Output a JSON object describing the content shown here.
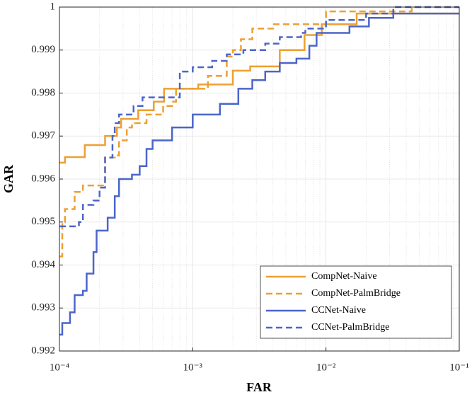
{
  "chart_data": {
    "type": "line",
    "x_label": "FAR",
    "y_label": "GAR",
    "xscale": "log",
    "xlim": [
      0.0001,
      0.1
    ],
    "xticks": [
      {
        "value": 0.0001,
        "label": "10⁻⁴"
      },
      {
        "value": 0.001,
        "label": "10⁻³"
      },
      {
        "value": 0.01,
        "label": "10⁻²"
      },
      {
        "value": 0.1,
        "label": "10⁻¹"
      }
    ],
    "ylim": [
      0.992,
      1
    ],
    "yticks": [
      0.992,
      0.993,
      0.994,
      0.995,
      0.996,
      0.997,
      0.998,
      0.999,
      1
    ],
    "grid": true,
    "minor_grid": true,
    "legend": "lower right",
    "series": [
      {
        "name": "CompNet-Naive",
        "color": "#eda031",
        "dash": "solid",
        "x": [
          0.0001,
          0.00011,
          0.00011,
          0.000155,
          0.000155,
          0.00022,
          0.00022,
          0.00027,
          0.00027,
          0.00029,
          0.00029,
          0.00039,
          0.00039,
          0.00051,
          0.00051,
          0.00061,
          0.00061,
          0.0011,
          0.0011,
          0.002,
          0.002,
          0.0027,
          0.0027,
          0.0045,
          0.0045,
          0.0069,
          0.0069,
          0.0093,
          0.0093,
          0.017,
          0.017,
          0.1
        ],
        "values": [
          0.99638,
          0.99638,
          0.99651,
          0.99651,
          0.99679,
          0.99679,
          0.997,
          0.997,
          0.9972,
          0.9972,
          0.9974,
          0.9974,
          0.9976,
          0.9976,
          0.9978,
          0.9978,
          0.9981,
          0.9981,
          0.9982,
          0.9982,
          0.99852,
          0.99852,
          0.99862,
          0.99862,
          0.999,
          0.999,
          0.99935,
          0.99935,
          0.9996,
          0.9996,
          0.99985,
          0.99985
        ]
      },
      {
        "name": "CompNet-PalmBridge",
        "color": "#eda031",
        "dash": "dashed",
        "x": [
          0.0001,
          0.000105,
          0.000105,
          0.00011,
          0.00011,
          0.00013,
          0.00013,
          0.00015,
          0.00015,
          0.00022,
          0.00022,
          0.00026,
          0.00026,
          0.00028,
          0.00028,
          0.00032,
          0.00032,
          0.00035,
          0.00035,
          0.00045,
          0.00045,
          0.0006,
          0.0006,
          0.0007,
          0.0007,
          0.00075,
          0.00075,
          0.0013,
          0.0013,
          0.0018,
          0.0018,
          0.002,
          0.002,
          0.0023,
          0.0023,
          0.0028,
          0.0028,
          0.004,
          0.004,
          0.01,
          0.01,
          0.044,
          0.044,
          0.1
        ],
        "values": [
          0.9942,
          0.9942,
          0.995,
          0.995,
          0.9953,
          0.9953,
          0.9957,
          0.9957,
          0.99585,
          0.99585,
          0.9965,
          0.9965,
          0.99655,
          0.99655,
          0.9969,
          0.9969,
          0.9972,
          0.9972,
          0.9973,
          0.9973,
          0.9975,
          0.9975,
          0.9977,
          0.9977,
          0.9978,
          0.9978,
          0.9981,
          0.9981,
          0.9984,
          0.9984,
          0.99885,
          0.99885,
          0.999,
          0.999,
          0.99925,
          0.99925,
          0.9995,
          0.9995,
          0.9996,
          0.9996,
          0.9999,
          0.9999,
          1,
          1
        ]
      },
      {
        "name": "CCNet-Naive",
        "color": "#4b65c9",
        "dash": "solid",
        "x": [
          0.0001,
          0.000105,
          0.000105,
          0.00012,
          0.00012,
          0.00013,
          0.00013,
          0.00015,
          0.00015,
          0.00016,
          0.00016,
          0.00018,
          0.00018,
          0.00019,
          0.00019,
          0.00023,
          0.00023,
          0.00026,
          0.00026,
          0.00028,
          0.00028,
          0.00035,
          0.00035,
          0.0004,
          0.0004,
          0.00045,
          0.00045,
          0.0005,
          0.0005,
          0.0007,
          0.0007,
          0.001,
          0.001,
          0.0016,
          0.0016,
          0.0022,
          0.0022,
          0.0028,
          0.0028,
          0.0035,
          0.0035,
          0.0045,
          0.0045,
          0.006,
          0.006,
          0.0075,
          0.0075,
          0.0085,
          0.0085,
          0.015,
          0.015,
          0.021,
          0.021,
          0.032,
          0.032,
          0.1
        ],
        "values": [
          0.99238,
          0.99238,
          0.99265,
          0.99265,
          0.9929,
          0.9929,
          0.9933,
          0.9933,
          0.9934,
          0.9934,
          0.9938,
          0.9938,
          0.9943,
          0.9943,
          0.9948,
          0.9948,
          0.9951,
          0.9951,
          0.9956,
          0.9956,
          0.996,
          0.996,
          0.9961,
          0.9961,
          0.9963,
          0.9963,
          0.9967,
          0.9967,
          0.9969,
          0.9969,
          0.9972,
          0.9972,
          0.9975,
          0.9975,
          0.99775,
          0.99775,
          0.9981,
          0.9981,
          0.9983,
          0.9983,
          0.9985,
          0.9985,
          0.9987,
          0.9987,
          0.9988,
          0.9988,
          0.9991,
          0.9991,
          0.9994,
          0.9994,
          0.99955,
          0.99955,
          0.99975,
          0.99975,
          0.99985,
          0.99985
        ]
      },
      {
        "name": "CCNet-PalmBridge",
        "color": "#4b65c9",
        "dash": "dashed",
        "x": [
          0.0001,
          0.00014,
          0.00014,
          0.00015,
          0.00015,
          0.00018,
          0.00018,
          0.0002,
          0.0002,
          0.00022,
          0.00022,
          0.00025,
          0.00025,
          0.00026,
          0.00026,
          0.00028,
          0.00028,
          0.00036,
          0.00036,
          0.00042,
          0.00042,
          0.0008,
          0.0008,
          0.001,
          0.001,
          0.0014,
          0.0014,
          0.0018,
          0.0018,
          0.0024,
          0.0024,
          0.0035,
          0.0035,
          0.0045,
          0.0045,
          0.0065,
          0.0065,
          0.007,
          0.007,
          0.01,
          0.01,
          0.02,
          0.02,
          0.032,
          0.032,
          0.1
        ],
        "values": [
          0.9949,
          0.9949,
          0.995,
          0.995,
          0.9954,
          0.9954,
          0.9955,
          0.9955,
          0.9958,
          0.9958,
          0.9965,
          0.9965,
          0.997,
          0.997,
          0.9973,
          0.9973,
          0.9975,
          0.9975,
          0.9977,
          0.9977,
          0.9979,
          0.9979,
          0.9985,
          0.9985,
          0.9986,
          0.9986,
          0.99875,
          0.99875,
          0.9989,
          0.9989,
          0.999,
          0.999,
          0.99915,
          0.99915,
          0.9993,
          0.9993,
          0.9994,
          0.9994,
          0.9995,
          0.9995,
          0.9997,
          0.9997,
          0.99985,
          0.99985,
          1,
          1
        ]
      }
    ]
  }
}
